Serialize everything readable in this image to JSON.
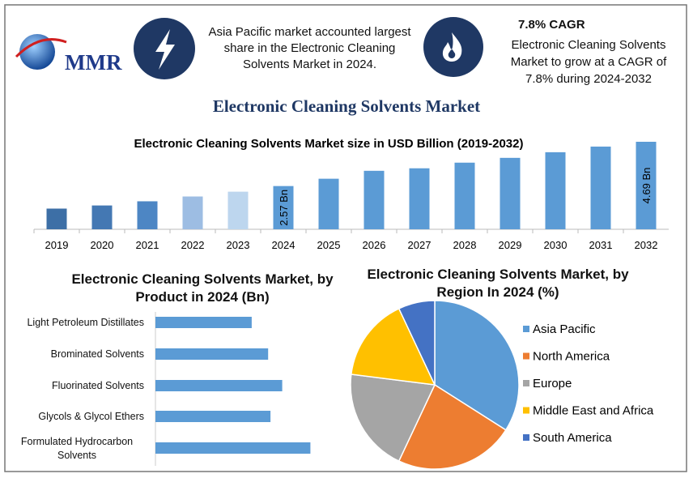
{
  "header": {
    "logo": "MMR",
    "highlight": "Asia Pacific market accounted largest share in the Electronic Cleaning Solvents Market in 2024.",
    "cagr_title": "7.8% CAGR",
    "cagr_text": "Electronic Cleaning Solvents Market to grow at a CAGR of 7.8% during 2024-2032",
    "title": "Electronic Cleaning Solvents Market"
  },
  "chart_data": [
    {
      "type": "bar",
      "title": "Electronic Cleaning Solvents Market size in USD Billion (2019-2032)",
      "categories": [
        "2019",
        "2020",
        "2021",
        "2022",
        "2023",
        "2024",
        "2025",
        "2026",
        "2027",
        "2028",
        "2029",
        "2030",
        "2031",
        "2032"
      ],
      "values": [
        1.49,
        1.64,
        1.84,
        2.07,
        2.3,
        2.57,
        2.92,
        3.3,
        3.42,
        3.69,
        3.92,
        4.19,
        4.46,
        4.69
      ],
      "value_labels": [
        null,
        null,
        null,
        null,
        null,
        "2.57 Bn",
        null,
        null,
        null,
        null,
        null,
        null,
        null,
        "4.69 Bn"
      ],
      "colors": [
        "#3d6fa6",
        "#4478b3",
        "#4d86c4",
        "#9dbde3",
        "#bdd6ee",
        "#5b9bd5",
        "#5b9bd5",
        "#5b9bd5",
        "#5b9bd5",
        "#5b9bd5",
        "#5b9bd5",
        "#5b9bd5",
        "#5b9bd5",
        "#5b9bd5"
      ],
      "ylim": [
        0.5,
        5
      ]
    },
    {
      "type": "hbar",
      "title": "Electronic Cleaning Solvents Market, by Product in 2024 (Bn)",
      "categories": [
        "Light Petroleum Distillates",
        "Brominated Solvents",
        "Fluorinated Solvents",
        "Glycols & Glycol Ethers",
        "Formulated Hydrocarbon Solvents"
      ],
      "values": [
        0.41,
        0.48,
        0.54,
        0.49,
        0.66
      ],
      "color": "#5b9bd5",
      "xlim": [
        0,
        1
      ]
    },
    {
      "type": "pie",
      "title": "Electronic Cleaning Solvents Market, by Region In 2024 (%)",
      "categories": [
        "Asia Pacific",
        "North America",
        "Europe",
        "Middle East and Africa",
        "South America"
      ],
      "values": [
        34,
        23,
        20,
        16,
        7
      ],
      "colors": [
        "#5b9bd5",
        "#ed7d31",
        "#a5a5a5",
        "#ffc000",
        "#4472c4"
      ],
      "legend": "right"
    }
  ]
}
